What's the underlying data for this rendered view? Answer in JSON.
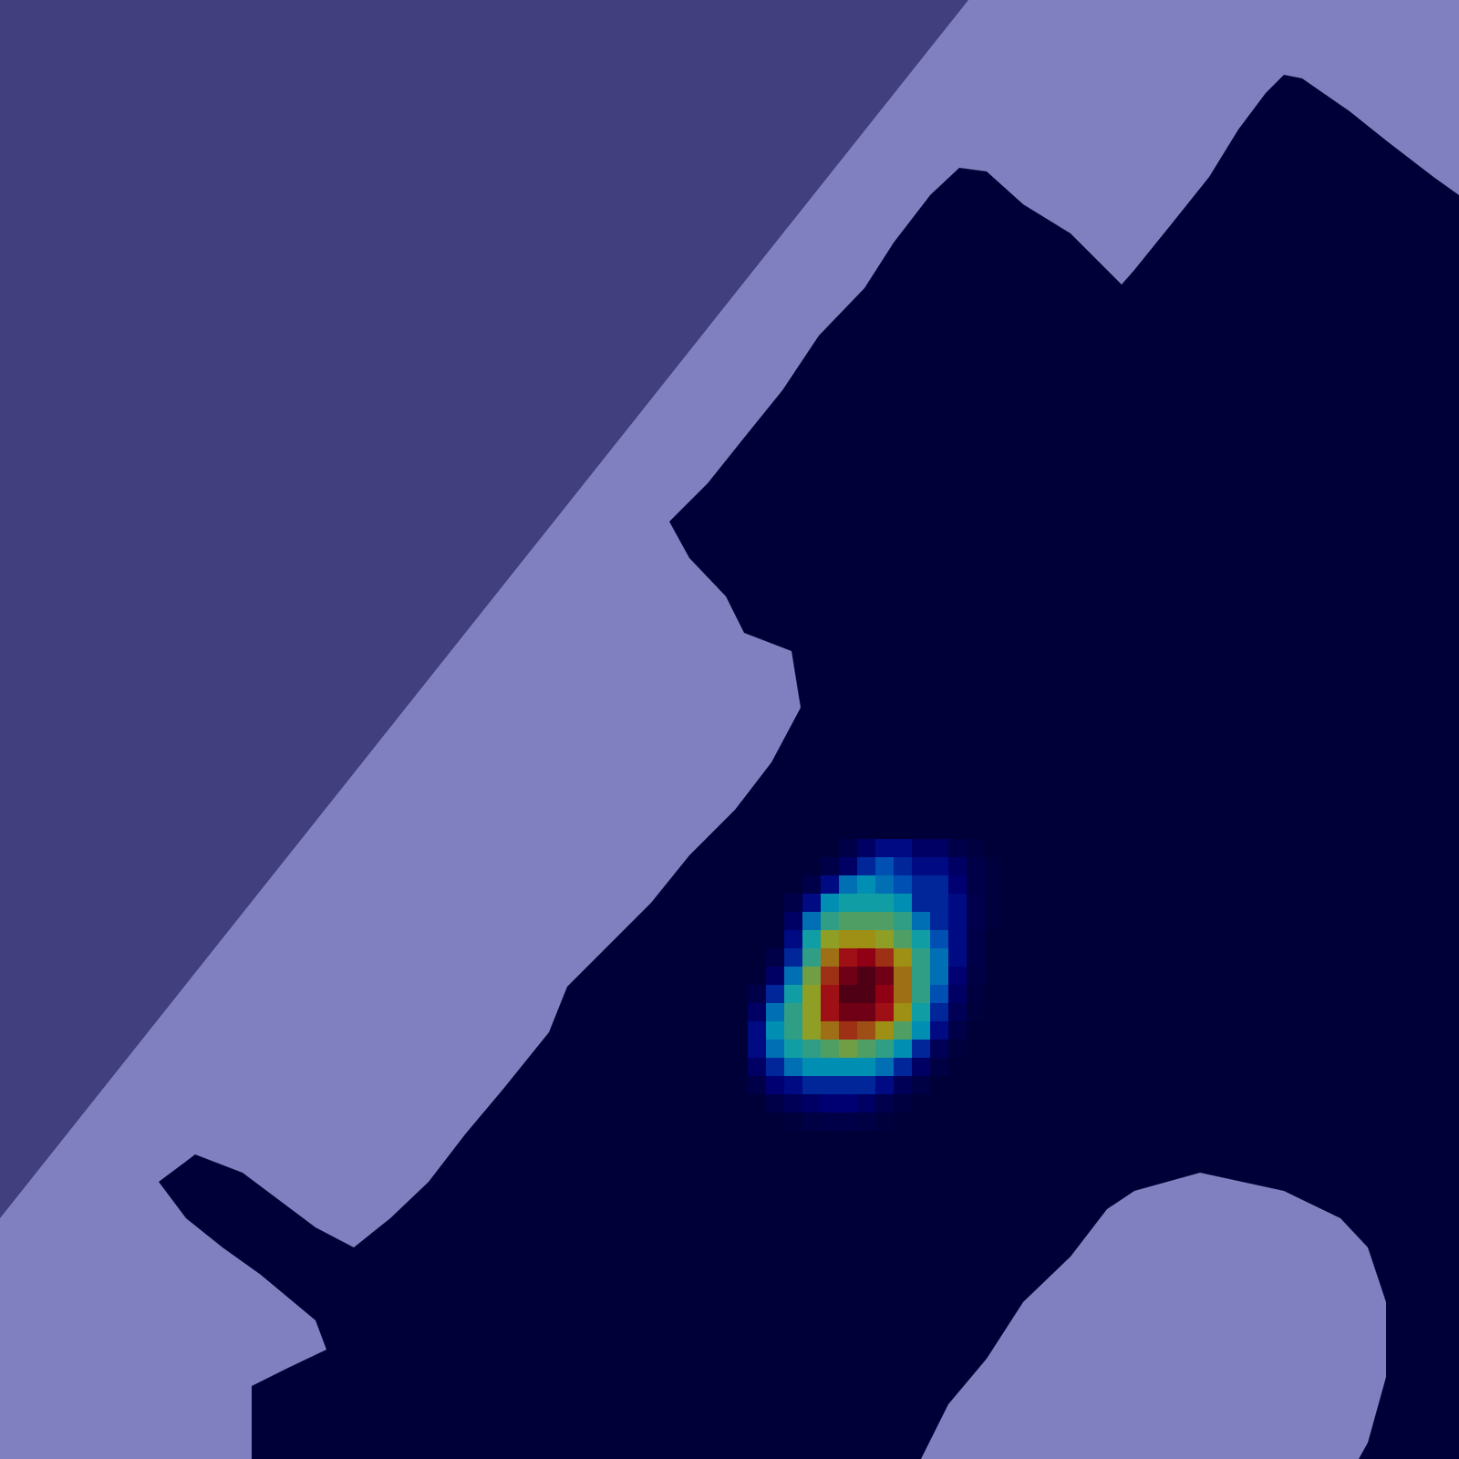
{
  "chart_data": {
    "type": "heatmap",
    "tick_labels": false,
    "xlim": [
      0,
      80
    ],
    "ylim": [
      0,
      80
    ],
    "regions": [
      {
        "color": "#8080c0",
        "points": [
          [
            0,
            0
          ],
          [
            80,
            0
          ],
          [
            80,
            80
          ],
          [
            0,
            80
          ]
        ]
      },
      {
        "color": "#413f7d",
        "points": [
          [
            0,
            0
          ],
          [
            53.1,
            0
          ],
          [
            0,
            66.8
          ]
        ]
      },
      {
        "color": "#000038",
        "points": [
          [
            80,
            10.7
          ],
          [
            78.6,
            9.7
          ],
          [
            76,
            7.7
          ],
          [
            74,
            6.1
          ],
          [
            71.4,
            4.3
          ],
          [
            70.4,
            4.1
          ],
          [
            69.4,
            5.1
          ],
          [
            67.9,
            7.1
          ],
          [
            66.3,
            9.7
          ],
          [
            64.3,
            12.2
          ],
          [
            62.2,
            14.8
          ],
          [
            61.5,
            15.6
          ],
          [
            60.2,
            14.3
          ],
          [
            58.7,
            12.8
          ],
          [
            56.1,
            11.2
          ],
          [
            54.1,
            9.4
          ],
          [
            52.6,
            9.2
          ],
          [
            51,
            10.7
          ],
          [
            49,
            13.3
          ],
          [
            47.4,
            15.8
          ],
          [
            44.9,
            18.4
          ],
          [
            42.9,
            21.4
          ],
          [
            40.8,
            24
          ],
          [
            38.8,
            26.5
          ],
          [
            36.7,
            28.6
          ],
          [
            37.8,
            30.6
          ],
          [
            39.8,
            32.7
          ],
          [
            40.8,
            34.7
          ],
          [
            43.4,
            35.7
          ],
          [
            43.9,
            38.8
          ],
          [
            42.3,
            41.8
          ],
          [
            40.3,
            44.4
          ],
          [
            37.8,
            46.9
          ],
          [
            35.7,
            49.5
          ],
          [
            33.2,
            52
          ],
          [
            31.1,
            54.1
          ],
          [
            30.1,
            56.6
          ],
          [
            27.6,
            59.7
          ],
          [
            25.5,
            62.2
          ],
          [
            23.5,
            64.8
          ],
          [
            21.4,
            66.8
          ],
          [
            19.4,
            68.4
          ],
          [
            17.3,
            67.3
          ],
          [
            15.3,
            65.8
          ],
          [
            13.3,
            64.3
          ],
          [
            10.7,
            63.3
          ],
          [
            8.7,
            64.8
          ],
          [
            10.2,
            66.8
          ],
          [
            12.2,
            68.4
          ],
          [
            14.3,
            69.9
          ],
          [
            17.3,
            72.4
          ],
          [
            17.9,
            74
          ],
          [
            15.8,
            75
          ],
          [
            13.8,
            76
          ],
          [
            13.8,
            80
          ],
          [
            50.5,
            80
          ],
          [
            52,
            77
          ],
          [
            54.1,
            74.5
          ],
          [
            56.1,
            71.4
          ],
          [
            58.7,
            68.9
          ],
          [
            60.7,
            66.3
          ],
          [
            62.2,
            65.3
          ],
          [
            65.8,
            64.3
          ],
          [
            70.4,
            65.3
          ],
          [
            73.5,
            66.8
          ],
          [
            75,
            68.4
          ],
          [
            76,
            71.4
          ],
          [
            76,
            75.5
          ],
          [
            75,
            79.1
          ],
          [
            74.5,
            80
          ],
          [
            80,
            80
          ]
        ]
      }
    ],
    "cells": {
      "x": [
        40,
        41,
        42,
        43,
        44,
        45,
        46,
        47,
        48,
        49,
        50,
        51,
        52,
        53,
        54,
        55
      ],
      "y": [
        46,
        47,
        48,
        49,
        50,
        51,
        52,
        53,
        54,
        55,
        56,
        57,
        58,
        59,
        60,
        61
      ],
      "values": [
        [
          0,
          0,
          0,
          0,
          0,
          0,
          0.05,
          0.1,
          0.15,
          0.15,
          0.1,
          0.1,
          0.05,
          0.03,
          0,
          0
        ],
        [
          0,
          0,
          0,
          0,
          0,
          0.05,
          0.1,
          0.2,
          0.25,
          0.2,
          0.15,
          0.15,
          0.1,
          0.05,
          0.02,
          0
        ],
        [
          0,
          0,
          0,
          0,
          0.05,
          0.15,
          0.3,
          0.35,
          0.3,
          0.25,
          0.2,
          0.2,
          0.12,
          0.05,
          0.02,
          0
        ],
        [
          0,
          0,
          0,
          0.05,
          0.15,
          0.35,
          0.4,
          0.4,
          0.4,
          0.35,
          0.2,
          0.2,
          0.15,
          0.06,
          0.02,
          0
        ],
        [
          0,
          0,
          0,
          0.1,
          0.3,
          0.45,
          0.5,
          0.5,
          0.5,
          0.45,
          0.3,
          0.2,
          0.15,
          0.06,
          0.02,
          0
        ],
        [
          0,
          0,
          0,
          0.15,
          0.4,
          0.6,
          0.65,
          0.65,
          0.6,
          0.5,
          0.4,
          0.25,
          0.15,
          0.05,
          0,
          0
        ],
        [
          0,
          0,
          0.05,
          0.2,
          0.45,
          0.7,
          0.85,
          0.9,
          0.8,
          0.65,
          0.45,
          0.3,
          0.15,
          0.05,
          0,
          0
        ],
        [
          0,
          0,
          0.1,
          0.3,
          0.55,
          0.8,
          0.95,
          1,
          0.95,
          0.7,
          0.45,
          0.3,
          0.12,
          0.04,
          0,
          0
        ],
        [
          0,
          0.05,
          0.2,
          0.4,
          0.6,
          0.85,
          1,
          1,
          0.9,
          0.7,
          0.45,
          0.25,
          0.1,
          0.03,
          0,
          0
        ],
        [
          0,
          0.1,
          0.3,
          0.45,
          0.6,
          0.85,
          0.95,
          0.95,
          0.85,
          0.65,
          0.4,
          0.2,
          0.08,
          0.02,
          0,
          0
        ],
        [
          0,
          0.15,
          0.35,
          0.45,
          0.6,
          0.7,
          0.8,
          0.75,
          0.65,
          0.5,
          0.35,
          0.15,
          0.05,
          0,
          0,
          0
        ],
        [
          0,
          0.15,
          0.3,
          0.4,
          0.45,
          0.5,
          0.55,
          0.5,
          0.45,
          0.35,
          0.2,
          0.08,
          0.02,
          0,
          0,
          0
        ],
        [
          0,
          0.1,
          0.2,
          0.3,
          0.35,
          0.35,
          0.35,
          0.35,
          0.3,
          0.2,
          0.1,
          0.04,
          0,
          0,
          0,
          0
        ],
        [
          0,
          0.05,
          0.12,
          0.15,
          0.2,
          0.2,
          0.2,
          0.2,
          0.15,
          0.08,
          0.04,
          0,
          0,
          0,
          0,
          0
        ],
        [
          0,
          0,
          0.05,
          0.08,
          0.1,
          0.12,
          0.12,
          0.1,
          0.06,
          0.03,
          0,
          0,
          0,
          0,
          0,
          0
        ],
        [
          0,
          0,
          0,
          0.02,
          0.04,
          0.05,
          0.05,
          0.04,
          0.02,
          0,
          0,
          0,
          0,
          0,
          0,
          0
        ]
      ]
    }
  }
}
